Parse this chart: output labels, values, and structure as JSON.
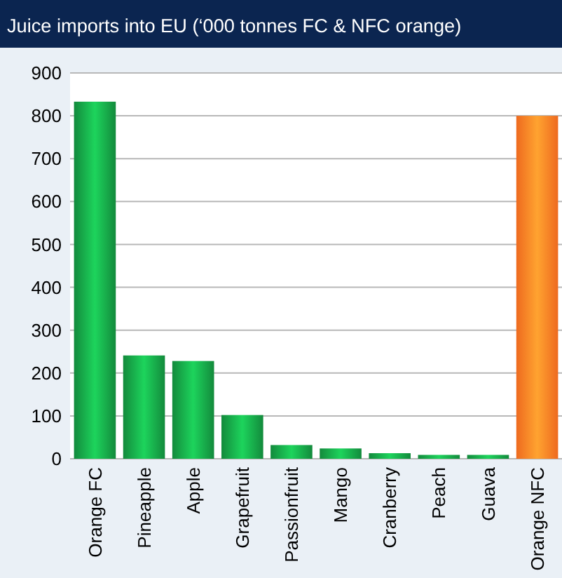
{
  "chart_data": {
    "type": "bar",
    "title": "Juice imports into EU (‘000 tonnes FC & NFC orange)",
    "categories": [
      "Orange FC",
      "Pineapple",
      "Apple",
      "Grapefruit",
      "Passionfruit",
      "Mango",
      "Cranberry",
      "Peach",
      "Guava",
      "Orange NFC"
    ],
    "values": [
      833,
      241,
      228,
      102,
      32,
      24,
      13,
      9,
      9,
      800
    ],
    "colors": [
      "#138a3c",
      "#138a3c",
      "#138a3c",
      "#138a3c",
      "#138a3c",
      "#138a3c",
      "#138a3c",
      "#138a3c",
      "#138a3c",
      "#ee6a1f"
    ],
    "ylim": [
      0,
      900
    ],
    "yticks": [
      0,
      100,
      200,
      300,
      400,
      500,
      600,
      700,
      800,
      900
    ],
    "grid": "y"
  }
}
